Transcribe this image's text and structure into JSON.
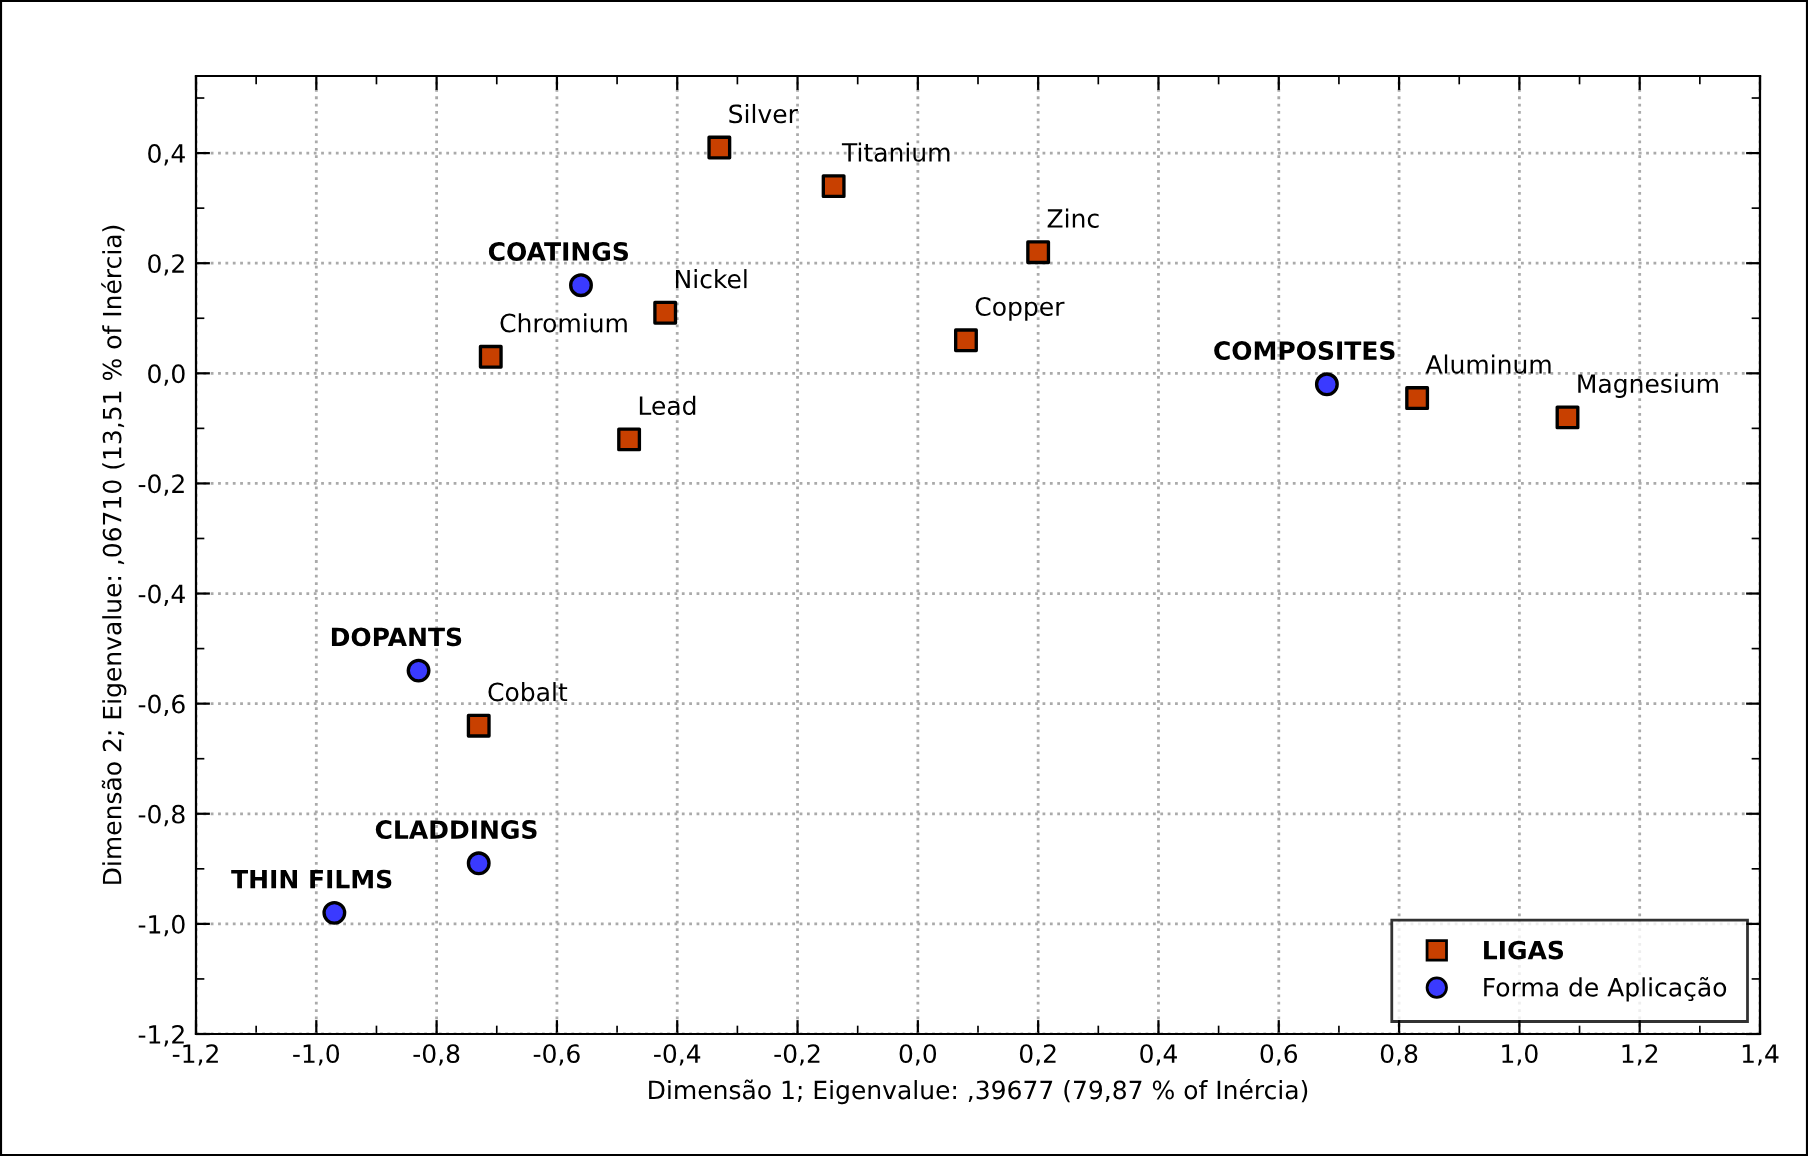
{
  "chart_data": {
    "type": "scatter",
    "xlabel": "Dimensão 1; Eigenvalue: ,39677 (79,87 % of Inércia)",
    "ylabel": "Dimensão 2; Eigenvalue: ,06710 (13,51 % of Inércia)",
    "xlim": [
      -1.2,
      1.4
    ],
    "ylim": [
      -1.2,
      0.54
    ],
    "xticks": [
      {
        "value": -1.2,
        "label": "-1,2"
      },
      {
        "value": -1.1,
        "label": null
      },
      {
        "value": -1.0,
        "label": "-1,0"
      },
      {
        "value": -0.9,
        "label": null
      },
      {
        "value": -0.8,
        "label": "-0,8"
      },
      {
        "value": -0.7,
        "label": null
      },
      {
        "value": -0.6,
        "label": "-0,6"
      },
      {
        "value": -0.5,
        "label": null
      },
      {
        "value": -0.4,
        "label": "-0,4"
      },
      {
        "value": -0.3,
        "label": null
      },
      {
        "value": -0.2,
        "label": "-0,2"
      },
      {
        "value": -0.1,
        "label": null
      },
      {
        "value": 0.0,
        "label": "0,0"
      },
      {
        "value": 0.1,
        "label": null
      },
      {
        "value": 0.2,
        "label": "0,2"
      },
      {
        "value": 0.3,
        "label": null
      },
      {
        "value": 0.4,
        "label": "0,4"
      },
      {
        "value": 0.5,
        "label": null
      },
      {
        "value": 0.6,
        "label": "0,6"
      },
      {
        "value": 0.7,
        "label": null
      },
      {
        "value": 0.8,
        "label": "0,8"
      },
      {
        "value": 0.9,
        "label": null
      },
      {
        "value": 1.0,
        "label": "1,0"
      },
      {
        "value": 1.1,
        "label": null
      },
      {
        "value": 1.2,
        "label": "1,2"
      },
      {
        "value": 1.3,
        "label": null
      },
      {
        "value": 1.4,
        "label": "1,4"
      }
    ],
    "yticks": [
      {
        "value": -1.2,
        "label": "-1,2"
      },
      {
        "value": -1.1,
        "label": null
      },
      {
        "value": -1.0,
        "label": "-1,0"
      },
      {
        "value": -0.9,
        "label": null
      },
      {
        "value": -0.8,
        "label": "-0,8"
      },
      {
        "value": -0.7,
        "label": null
      },
      {
        "value": -0.6,
        "label": "-0,6"
      },
      {
        "value": -0.5,
        "label": null
      },
      {
        "value": -0.4,
        "label": "-0,4"
      },
      {
        "value": -0.3,
        "label": null
      },
      {
        "value": -0.2,
        "label": "-0,2"
      },
      {
        "value": -0.1,
        "label": null
      },
      {
        "value": 0.0,
        "label": "0,0"
      },
      {
        "value": 0.1,
        "label": null
      },
      {
        "value": 0.2,
        "label": "0,2"
      },
      {
        "value": 0.3,
        "label": null
      },
      {
        "value": 0.4,
        "label": "0,4"
      },
      {
        "value": 0.5,
        "label": null
      }
    ],
    "grid": true,
    "legend": "bottom right",
    "series": [
      {
        "name": "LIGAS",
        "color": "#c84000",
        "marker": "square",
        "x": [
          -0.33,
          -0.14,
          0.2,
          -0.42,
          0.08,
          -0.71,
          -0.48,
          0.83,
          1.08,
          -0.73
        ],
        "values": [
          0.41,
          0.34,
          0.22,
          0.11,
          0.06,
          0.03,
          -0.12,
          -0.045,
          -0.08,
          -0.64
        ]
      },
      {
        "name": "Forma de Aplicação",
        "color": "#3a3aff",
        "marker": "circle",
        "x": [
          -0.56,
          0.68,
          -0.83,
          -0.73,
          -0.97
        ],
        "values": [
          0.16,
          -0.02,
          -0.54,
          -0.89,
          -0.98
        ]
      }
    ],
    "annotations": [
      {
        "text": "Silver",
        "x": -0.33,
        "y": 0.41
      },
      {
        "text": "Titanium",
        "x": -0.14,
        "y": 0.34
      },
      {
        "text": "Zinc",
        "x": 0.2,
        "y": 0.22
      },
      {
        "text": "Nickel",
        "x": -0.42,
        "y": 0.11
      },
      {
        "text": "Copper",
        "x": 0.08,
        "y": 0.06
      },
      {
        "text": "Chromium",
        "x": -0.71,
        "y": 0.03
      },
      {
        "text": "Lead",
        "x": -0.48,
        "y": -0.12
      },
      {
        "text": "Aluminum",
        "x": 0.83,
        "y": -0.045
      },
      {
        "text": "Magnesium",
        "x": 1.08,
        "y": -0.08
      },
      {
        "text": "Cobalt",
        "x": -0.73,
        "y": -0.64
      },
      {
        "text": "COATINGS",
        "x": -0.56,
        "y": 0.16
      },
      {
        "text": "COMPOSITES",
        "x": 0.68,
        "y": -0.02
      },
      {
        "text": "DOPANTS",
        "x": -0.83,
        "y": -0.54
      },
      {
        "text": "CLADDINGS",
        "x": -0.73,
        "y": -0.89
      },
      {
        "text": "THIN FILMS",
        "x": -0.97,
        "y": -0.98
      }
    ]
  }
}
